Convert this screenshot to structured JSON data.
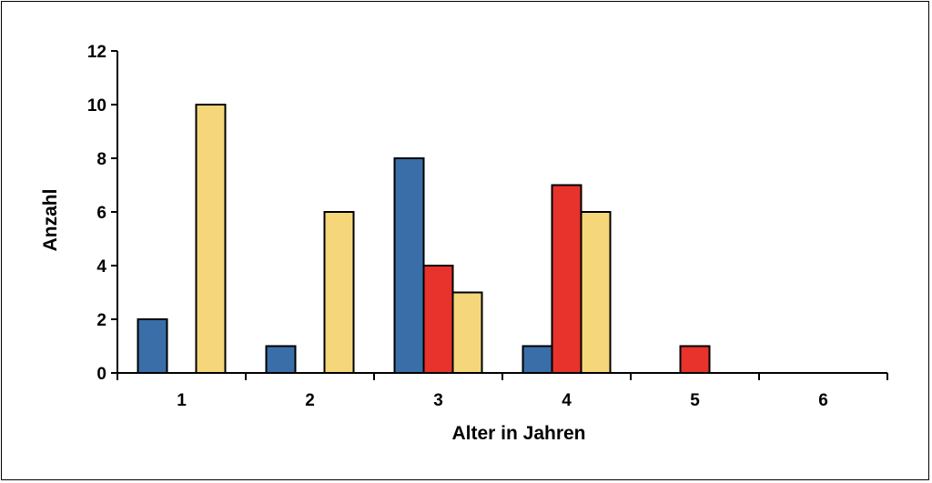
{
  "chart_data": {
    "type": "bar",
    "categories": [
      "1",
      "2",
      "3",
      "4",
      "5",
      "6"
    ],
    "series": [
      {
        "values": [
          2,
          1,
          8,
          1,
          0,
          0
        ],
        "color": "#3a6ea8"
      },
      {
        "values": [
          0,
          0,
          4,
          7,
          1,
          0
        ],
        "color": "#e8322c"
      },
      {
        "values": [
          10,
          6,
          3,
          6,
          0,
          0
        ],
        "color": "#f5d67a"
      }
    ],
    "title": "",
    "xlabel": "Alter in Jahren",
    "ylabel": "Anzahl",
    "ylim": [
      0,
      12
    ],
    "yticks": [
      "0",
      "2",
      "4",
      "6",
      "8",
      "10",
      "12"
    ],
    "grid": false,
    "legend": "none"
  }
}
